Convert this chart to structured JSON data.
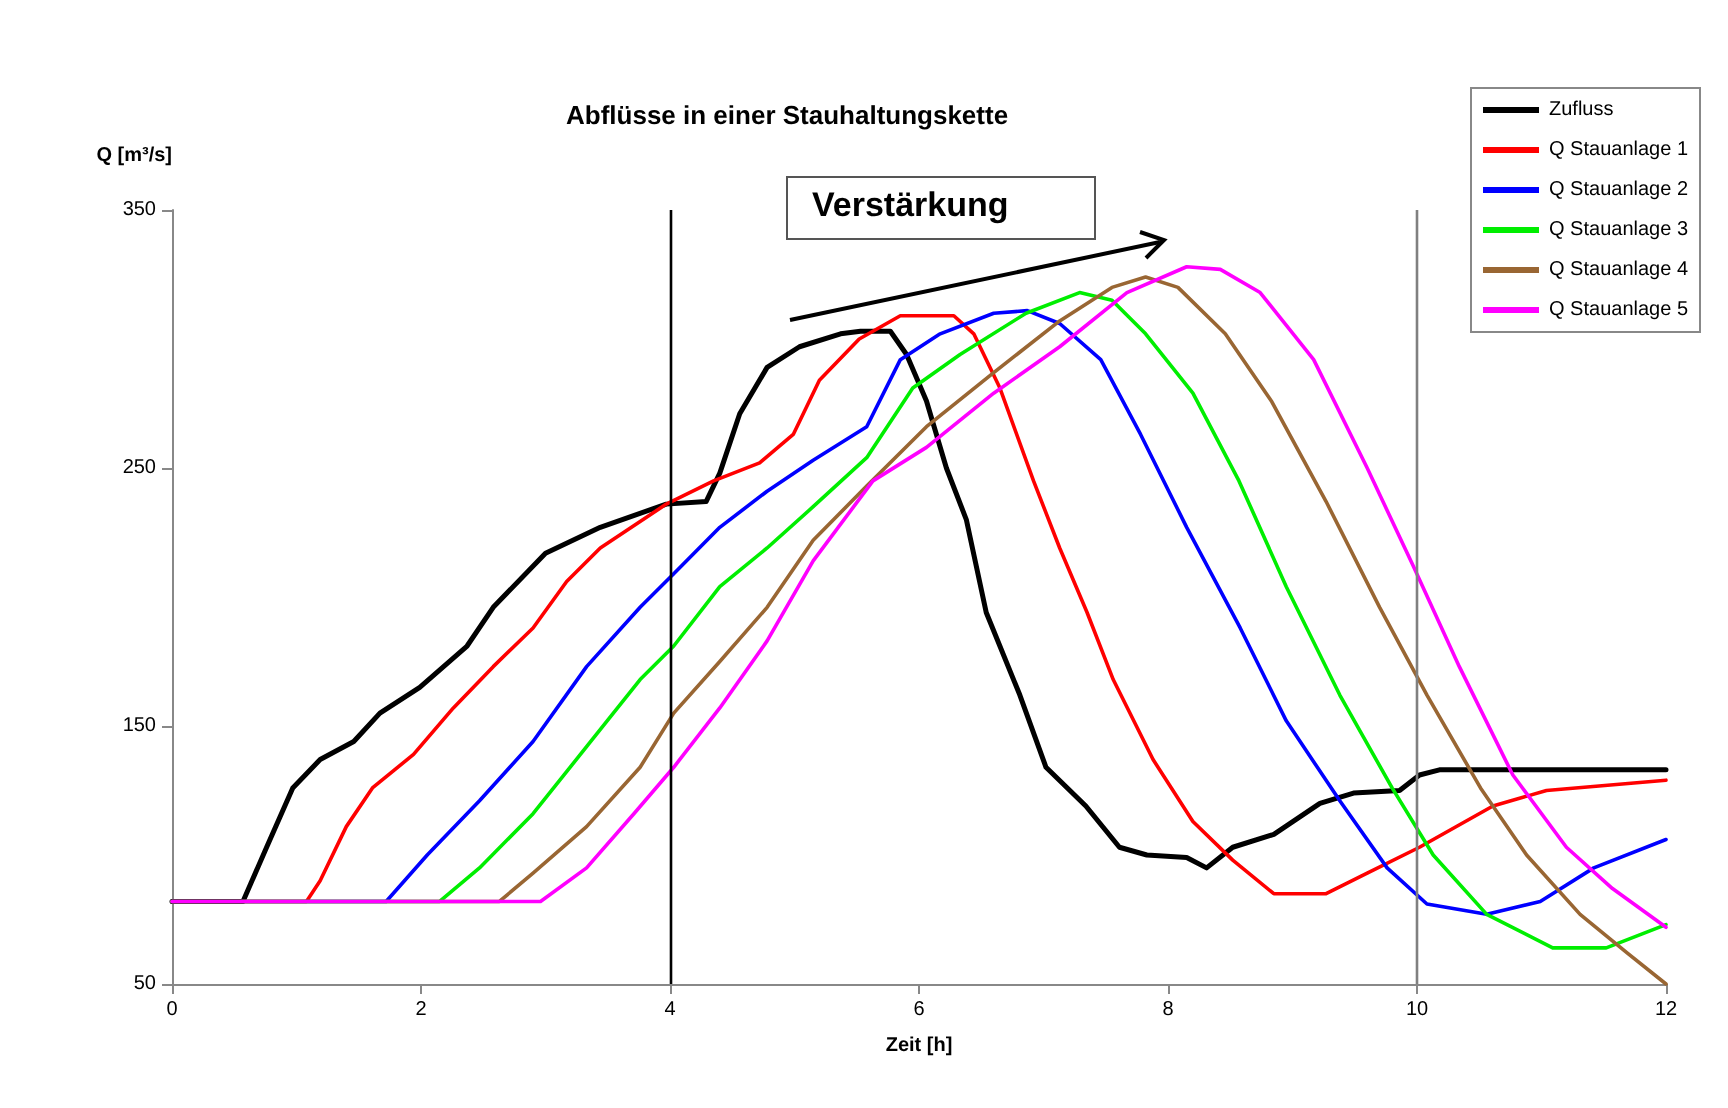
{
  "chart_data": {
    "type": "line",
    "title": "Abflüsse in einer Stauhaltungskette",
    "xlabel": "Zeit [h]",
    "ylabel": "Q [m³/s]",
    "annotations": [
      "Verstärkung"
    ],
    "xlim": [
      0,
      12
    ],
    "xticks": [
      0,
      2,
      4,
      6,
      8,
      10,
      12
    ],
    "ylim": [
      50,
      350
    ],
    "yticks": [
      50,
      150,
      250,
      350
    ],
    "grid": false,
    "legend": "top right",
    "marker": "none",
    "line_style": "solid",
    "ref_lines": [
      {
        "axis": "x",
        "value": 4,
        "color": "#000000"
      },
      {
        "axis": "x",
        "value": 10,
        "color": "#808080"
      }
    ],
    "series": [
      {
        "name": "Zufluss",
        "color": "#000000",
        "x": [
          0,
          0.57,
          0.76,
          0.97,
          1.19,
          1.46,
          1.67,
          1.99,
          2.37,
          2.58,
          3.0,
          3.44,
          3.97,
          4.29,
          4.4,
          4.56,
          4.78,
          5.04,
          5.37,
          5.53,
          5.77,
          5.9,
          6.06,
          6.22,
          6.38,
          6.54,
          6.81,
          7.02,
          7.34,
          7.61,
          7.83,
          8.15,
          8.31,
          8.52,
          8.85,
          9.22,
          9.49,
          9.86,
          10.02,
          10.18,
          12.0
        ],
        "values": [
          82,
          82,
          103,
          126,
          137,
          144,
          155,
          165,
          181,
          196,
          217,
          227,
          236,
          237,
          248,
          271,
          289,
          297,
          302,
          303,
          303,
          294,
          276,
          250,
          230,
          194,
          162,
          134,
          119,
          103,
          100,
          99,
          95,
          103,
          108,
          120,
          124,
          125,
          131,
          133,
          133
        ]
      },
      {
        "name": "Q Stauanlage 1",
        "color": "#ff0000",
        "x": [
          0,
          1.08,
          1.19,
          1.4,
          1.61,
          1.94,
          2.26,
          2.58,
          2.9,
          3.17,
          3.44,
          3.97,
          4.35,
          4.72,
          4.99,
          5.2,
          5.52,
          5.85,
          6.28,
          6.44,
          6.65,
          6.92,
          7.13,
          7.35,
          7.56,
          7.88,
          8.2,
          8.52,
          8.85,
          9.27,
          9.6,
          10.02,
          10.61,
          11.04,
          12.0
        ],
        "values": [
          82,
          82,
          90,
          111,
          126,
          139,
          157,
          173,
          188,
          206,
          219,
          236,
          245,
          252,
          263,
          284,
          300,
          309,
          309,
          302,
          281,
          245,
          219,
          194,
          168,
          137,
          113,
          98,
          85,
          85,
          93,
          103,
          119,
          125,
          129
        ]
      },
      {
        "name": "Q Stauanlage 2",
        "color": "#0000ff",
        "x": [
          0,
          1.72,
          2.05,
          2.47,
          2.9,
          3.33,
          3.76,
          4.03,
          4.4,
          4.78,
          5.15,
          5.58,
          5.85,
          6.17,
          6.6,
          6.87,
          7.13,
          7.46,
          7.78,
          8.15,
          8.58,
          8.95,
          9.38,
          9.76,
          10.08,
          10.56,
          10.99,
          11.42,
          12.0
        ],
        "values": [
          82,
          82,
          100,
          121,
          144,
          173,
          196,
          209,
          227,
          241,
          253,
          266,
          292,
          302,
          310,
          311,
          306,
          292,
          263,
          227,
          188,
          152,
          121,
          95,
          81,
          77,
          82,
          95,
          106
        ]
      },
      {
        "name": "Q Stauanlage 3",
        "color": "#00ee00",
        "x": [
          0,
          2.15,
          2.47,
          2.9,
          3.33,
          3.76,
          4.03,
          4.4,
          4.78,
          5.15,
          5.58,
          5.95,
          6.33,
          6.86,
          7.29,
          7.55,
          7.82,
          8.2,
          8.57,
          8.95,
          9.38,
          9.8,
          10.13,
          10.56,
          11.09,
          11.52,
          12.0
        ],
        "values": [
          82,
          82,
          95,
          116,
          142,
          168,
          181,
          204,
          219,
          235,
          254,
          281,
          294,
          310,
          318,
          315,
          302,
          279,
          245,
          204,
          162,
          126,
          100,
          77,
          64,
          64,
          73
        ]
      },
      {
        "name": "Q Stauanlage 4",
        "color": "#996633",
        "x": [
          0,
          2.63,
          2.9,
          3.33,
          3.76,
          4.03,
          4.4,
          4.78,
          5.15,
          5.58,
          6.06,
          6.6,
          7.13,
          7.55,
          7.82,
          8.08,
          8.46,
          8.83,
          9.27,
          9.7,
          10.08,
          10.51,
          10.88,
          11.31,
          11.69,
          12.0
        ],
        "values": [
          82,
          82,
          93,
          111,
          134,
          155,
          175,
          196,
          222,
          243,
          266,
          287,
          307,
          320,
          324,
          320,
          302,
          276,
          237,
          196,
          162,
          126,
          100,
          77,
          62,
          50
        ]
      },
      {
        "name": "Q Stauanlage 5",
        "color": "#ff00ff",
        "x": [
          0,
          2.96,
          3.33,
          3.71,
          4.03,
          4.4,
          4.78,
          5.15,
          5.63,
          6.06,
          6.6,
          7.13,
          7.67,
          8.15,
          8.42,
          8.74,
          9.17,
          9.6,
          9.97,
          10.34,
          10.77,
          11.2,
          11.57,
          12.0
        ],
        "values": [
          82,
          82,
          95,
          116,
          134,
          157,
          183,
          214,
          245,
          258,
          279,
          297,
          318,
          328,
          327,
          318,
          292,
          250,
          212,
          173,
          131,
          103,
          87,
          72
        ]
      }
    ]
  }
}
